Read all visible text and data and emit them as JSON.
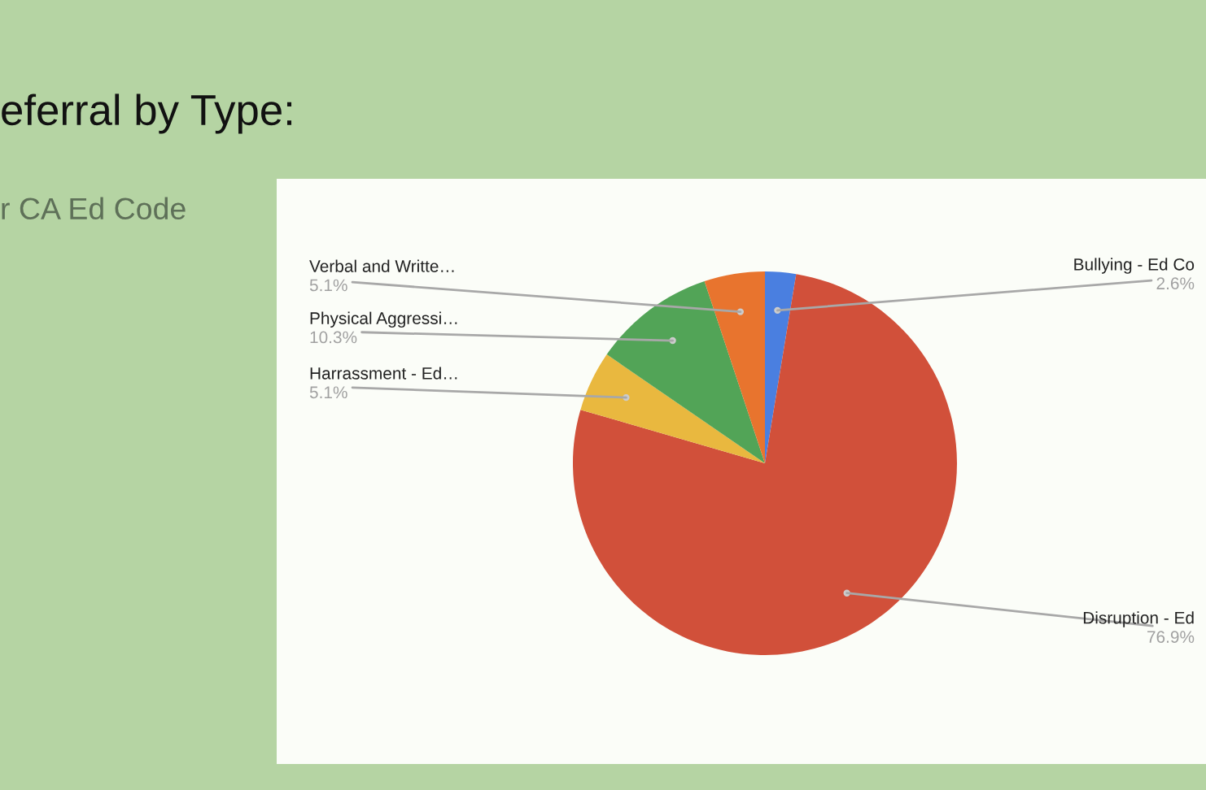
{
  "chart_data": {
    "type": "pie",
    "title": "eferral by Type:",
    "subtitle": "r CA Ed Code",
    "categories": [
      "Bullying - Ed Co",
      "Disruption - Ed",
      "Harrassment - Ed…",
      "Physical Aggressi…",
      "Verbal and Writte…"
    ],
    "values": [
      2.6,
      76.9,
      5.1,
      10.3,
      5.1
    ],
    "colors": [
      "#4a7fe0",
      "#d1503a",
      "#e9b83f",
      "#52a457",
      "#e8742e"
    ],
    "value_labels": [
      "2.6%",
      "76.9%",
      "5.1%",
      "10.3%",
      "5.1%"
    ]
  }
}
